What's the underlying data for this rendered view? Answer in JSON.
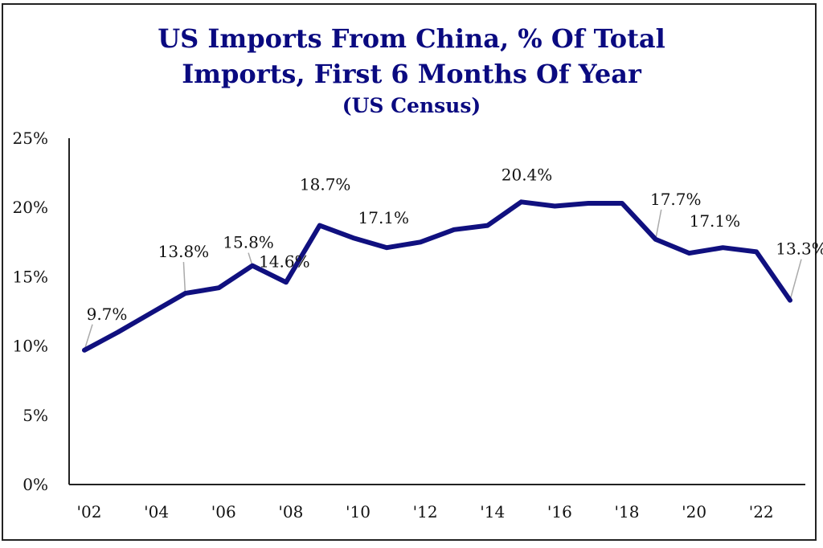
{
  "chart_data": {
    "type": "line",
    "title": "US Imports From China, % Of Total Imports, First 6 Months Of Year",
    "title_lines": [
      "US Imports From China, % Of Total",
      "Imports, First 6 Months Of Year"
    ],
    "subtitle": "(US Census)",
    "xlabel": "",
    "ylabel": "",
    "ylim": [
      0,
      25
    ],
    "xlim": [
      2002,
      2023
    ],
    "yticks": [
      0,
      5,
      10,
      15,
      20,
      25
    ],
    "ytick_labels": [
      "0%",
      "5%",
      "10%",
      "15%",
      "20%",
      "25%"
    ],
    "xticks": [
      2002,
      2004,
      2006,
      2008,
      2010,
      2012,
      2014,
      2016,
      2018,
      2020,
      2022
    ],
    "xtick_labels": [
      "'02",
      "'04",
      "'06",
      "'08",
      "'10",
      "'12",
      "'14",
      "'16",
      "'18",
      "'20",
      "'22"
    ],
    "grid": false,
    "legend": "none",
    "colors": {
      "line": "#10107f",
      "title": "#0a0a80",
      "leader": "#aaaaaa"
    },
    "series": [
      {
        "name": "US imports from China, % of total",
        "x": [
          2002,
          2003,
          2004,
          2005,
          2006,
          2007,
          2008,
          2009,
          2010,
          2011,
          2012,
          2013,
          2014,
          2015,
          2016,
          2017,
          2018,
          2019,
          2020,
          2021,
          2022,
          2023
        ],
        "values": [
          9.7,
          11.0,
          12.4,
          13.8,
          14.2,
          15.8,
          14.6,
          18.7,
          17.8,
          17.1,
          17.5,
          18.4,
          18.7,
          20.4,
          20.1,
          20.3,
          20.3,
          17.7,
          16.7,
          17.1,
          16.8,
          13.3
        ]
      }
    ],
    "annotations": [
      {
        "x": 2002,
        "y": 9.7,
        "text": "9.7%"
      },
      {
        "x": 2005,
        "y": 13.8,
        "text": "13.8%"
      },
      {
        "x": 2007,
        "y": 15.8,
        "text": "15.8%"
      },
      {
        "x": 2008,
        "y": 14.6,
        "text": "14.6%"
      },
      {
        "x": 2009,
        "y": 18.7,
        "text": "18.7%"
      },
      {
        "x": 2011,
        "y": 17.1,
        "text": "17.1%"
      },
      {
        "x": 2015,
        "y": 20.4,
        "text": "20.4%"
      },
      {
        "x": 2019,
        "y": 17.7,
        "text": "17.7%"
      },
      {
        "x": 2021,
        "y": 17.1,
        "text": "17.1%"
      },
      {
        "x": 2023,
        "y": 13.3,
        "text": "13.3%"
      }
    ]
  }
}
